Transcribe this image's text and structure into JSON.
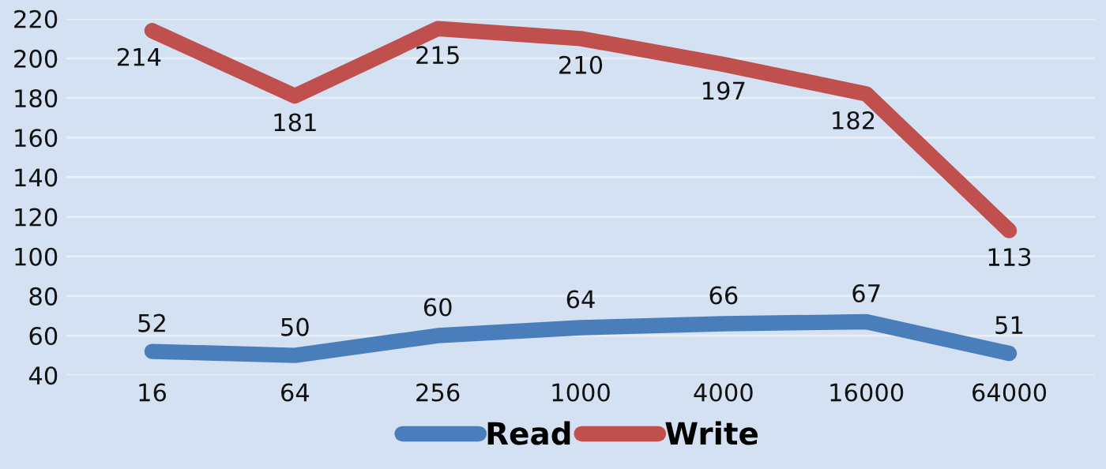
{
  "chart_data": {
    "type": "line",
    "categories": [
      "16",
      "64",
      "256",
      "1000",
      "4000",
      "16000",
      "64000"
    ],
    "series": [
      {
        "name": "Read",
        "color": "#4a7ebb",
        "values": [
          52,
          50,
          60,
          64,
          66,
          67,
          51
        ]
      },
      {
        "name": "Write",
        "color": "#c0504d",
        "values": [
          214,
          181,
          215,
          210,
          197,
          182,
          113
        ]
      }
    ],
    "ylim": [
      40,
      220
    ],
    "yticks": [
      40,
      60,
      80,
      100,
      120,
      140,
      160,
      180,
      200,
      220
    ],
    "grid": "y",
    "legend": "bottom",
    "data_labels": true,
    "marker": "none",
    "line_style": "solid"
  }
}
